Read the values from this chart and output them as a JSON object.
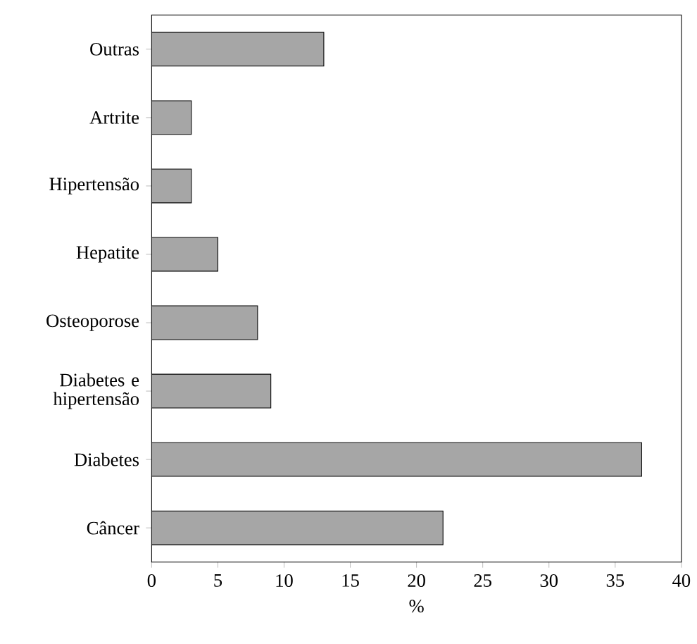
{
  "chart_data": {
    "type": "bar",
    "orientation": "horizontal",
    "xlabel": "%",
    "categories": [
      "Outras",
      "Artrite",
      "Hipertensão",
      "Hepatite",
      "Osteoporose",
      "Diabetes e hipertensão",
      "Diabetes",
      "Câncer"
    ],
    "values": [
      13,
      3,
      3,
      5,
      8,
      9,
      37,
      22
    ],
    "color": "#a6a6a6",
    "xlim": [
      0,
      40
    ],
    "xticks": [
      0,
      5,
      10,
      15,
      20,
      25,
      30,
      35,
      40
    ]
  }
}
